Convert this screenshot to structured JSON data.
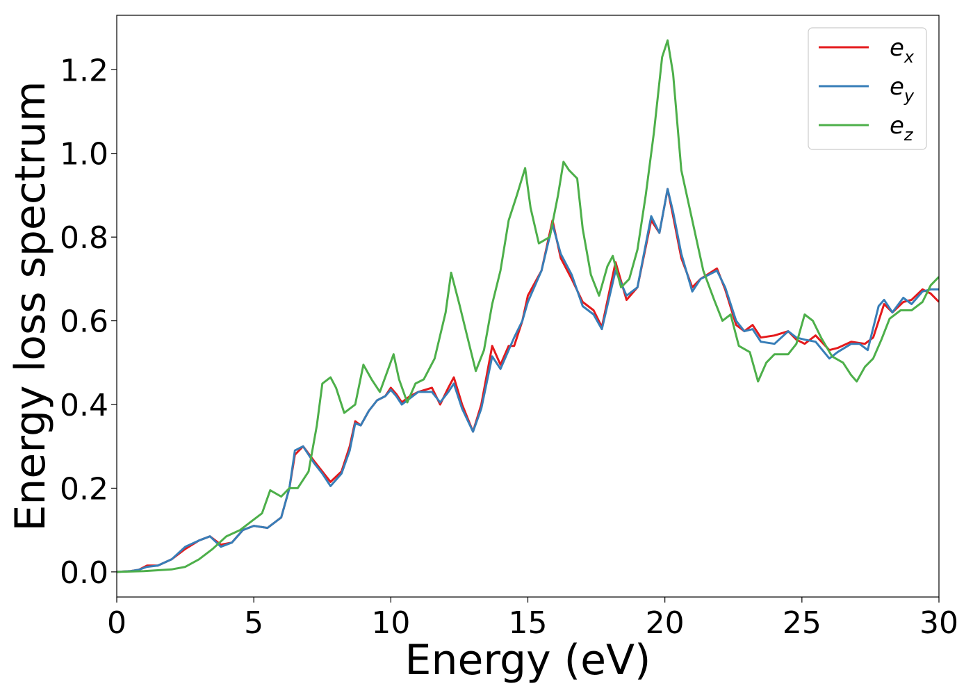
{
  "chart_data": {
    "type": "line",
    "xlabel": "Energy (eV)",
    "ylabel": "Energy loss spectrum",
    "xlim": [
      0,
      30
    ],
    "ylim": [
      -0.06,
      1.33
    ],
    "xticks": [
      0,
      5,
      10,
      15,
      20,
      25,
      30
    ],
    "xtick_labels": [
      "0",
      "5",
      "10",
      "15",
      "20",
      "25",
      "30"
    ],
    "yticks": [
      0.0,
      0.2,
      0.4,
      0.6,
      0.8,
      1.0,
      1.2
    ],
    "ytick_labels": [
      "0.0",
      "0.2",
      "0.4",
      "0.6",
      "0.8",
      "1.0",
      "1.2"
    ],
    "grid": false,
    "legend_position": "top-right",
    "series": [
      {
        "name": "e",
        "subscript": "x",
        "color": "#e41a1c",
        "points": [
          [
            0,
            0
          ],
          [
            0.5,
            0.002
          ],
          [
            0.8,
            0.005
          ],
          [
            1.1,
            0.015
          ],
          [
            1.5,
            0.015
          ],
          [
            2.0,
            0.03
          ],
          [
            2.5,
            0.055
          ],
          [
            3.0,
            0.075
          ],
          [
            3.4,
            0.085
          ],
          [
            3.8,
            0.065
          ],
          [
            4.2,
            0.07
          ],
          [
            4.6,
            0.1
          ],
          [
            5.0,
            0.11
          ],
          [
            5.5,
            0.105
          ],
          [
            6.0,
            0.13
          ],
          [
            6.3,
            0.2
          ],
          [
            6.5,
            0.28
          ],
          [
            6.8,
            0.3
          ],
          [
            7.2,
            0.265
          ],
          [
            7.5,
            0.24
          ],
          [
            7.8,
            0.215
          ],
          [
            8.2,
            0.24
          ],
          [
            8.5,
            0.3
          ],
          [
            8.7,
            0.36
          ],
          [
            8.9,
            0.35
          ],
          [
            9.2,
            0.385
          ],
          [
            9.5,
            0.41
          ],
          [
            9.8,
            0.42
          ],
          [
            10.0,
            0.44
          ],
          [
            10.2,
            0.425
          ],
          [
            10.4,
            0.405
          ],
          [
            10.7,
            0.42
          ],
          [
            11.0,
            0.43
          ],
          [
            11.5,
            0.44
          ],
          [
            11.8,
            0.4
          ],
          [
            12.1,
            0.44
          ],
          [
            12.3,
            0.465
          ],
          [
            12.6,
            0.4
          ],
          [
            13.0,
            0.335
          ],
          [
            13.3,
            0.4
          ],
          [
            13.7,
            0.54
          ],
          [
            14.0,
            0.495
          ],
          [
            14.3,
            0.54
          ],
          [
            14.5,
            0.54
          ],
          [
            14.8,
            0.6
          ],
          [
            15.0,
            0.66
          ],
          [
            15.5,
            0.72
          ],
          [
            15.9,
            0.84
          ],
          [
            16.2,
            0.75
          ],
          [
            16.6,
            0.7
          ],
          [
            17.0,
            0.645
          ],
          [
            17.4,
            0.625
          ],
          [
            17.7,
            0.585
          ],
          [
            18.2,
            0.74
          ],
          [
            18.6,
            0.65
          ],
          [
            19.0,
            0.68
          ],
          [
            19.5,
            0.84
          ],
          [
            19.8,
            0.81
          ],
          [
            20.1,
            0.915
          ],
          [
            20.3,
            0.85
          ],
          [
            20.6,
            0.75
          ],
          [
            21.0,
            0.68
          ],
          [
            21.3,
            0.7
          ],
          [
            21.9,
            0.725
          ],
          [
            22.2,
            0.675
          ],
          [
            22.6,
            0.59
          ],
          [
            22.9,
            0.575
          ],
          [
            23.2,
            0.59
          ],
          [
            23.5,
            0.56
          ],
          [
            24.0,
            0.565
          ],
          [
            24.5,
            0.575
          ],
          [
            24.8,
            0.555
          ],
          [
            25.1,
            0.545
          ],
          [
            25.5,
            0.565
          ],
          [
            26.0,
            0.53
          ],
          [
            26.3,
            0.535
          ],
          [
            26.8,
            0.55
          ],
          [
            27.3,
            0.545
          ],
          [
            27.6,
            0.56
          ],
          [
            28.0,
            0.64
          ],
          [
            28.3,
            0.62
          ],
          [
            28.7,
            0.645
          ],
          [
            29.0,
            0.65
          ],
          [
            29.4,
            0.675
          ],
          [
            29.7,
            0.665
          ],
          [
            30,
            0.645
          ]
        ]
      },
      {
        "name": "e",
        "subscript": "y",
        "color": "#377eb8",
        "points": [
          [
            0,
            0
          ],
          [
            0.5,
            0.002
          ],
          [
            0.8,
            0.005
          ],
          [
            1.1,
            0.012
          ],
          [
            1.5,
            0.015
          ],
          [
            2.0,
            0.03
          ],
          [
            2.5,
            0.06
          ],
          [
            3.0,
            0.075
          ],
          [
            3.4,
            0.085
          ],
          [
            3.8,
            0.06
          ],
          [
            4.2,
            0.07
          ],
          [
            4.6,
            0.1
          ],
          [
            5.0,
            0.11
          ],
          [
            5.5,
            0.105
          ],
          [
            6.0,
            0.13
          ],
          [
            6.3,
            0.2
          ],
          [
            6.5,
            0.29
          ],
          [
            6.8,
            0.3
          ],
          [
            7.2,
            0.26
          ],
          [
            7.5,
            0.235
          ],
          [
            7.8,
            0.205
          ],
          [
            8.2,
            0.235
          ],
          [
            8.5,
            0.29
          ],
          [
            8.7,
            0.355
          ],
          [
            8.9,
            0.35
          ],
          [
            9.2,
            0.385
          ],
          [
            9.5,
            0.41
          ],
          [
            9.8,
            0.42
          ],
          [
            10.0,
            0.435
          ],
          [
            10.2,
            0.42
          ],
          [
            10.4,
            0.4
          ],
          [
            10.7,
            0.415
          ],
          [
            11.0,
            0.43
          ],
          [
            11.5,
            0.43
          ],
          [
            11.8,
            0.405
          ],
          [
            12.1,
            0.43
          ],
          [
            12.3,
            0.45
          ],
          [
            12.6,
            0.39
          ],
          [
            13.0,
            0.335
          ],
          [
            13.3,
            0.39
          ],
          [
            13.7,
            0.515
          ],
          [
            14.0,
            0.485
          ],
          [
            14.3,
            0.53
          ],
          [
            14.5,
            0.56
          ],
          [
            14.8,
            0.6
          ],
          [
            15.0,
            0.645
          ],
          [
            15.5,
            0.72
          ],
          [
            15.9,
            0.83
          ],
          [
            16.2,
            0.76
          ],
          [
            16.6,
            0.71
          ],
          [
            17.0,
            0.635
          ],
          [
            17.4,
            0.615
          ],
          [
            17.7,
            0.58
          ],
          [
            18.2,
            0.72
          ],
          [
            18.6,
            0.66
          ],
          [
            19.0,
            0.68
          ],
          [
            19.5,
            0.85
          ],
          [
            19.8,
            0.81
          ],
          [
            20.1,
            0.915
          ],
          [
            20.3,
            0.86
          ],
          [
            20.6,
            0.76
          ],
          [
            21.0,
            0.67
          ],
          [
            21.3,
            0.7
          ],
          [
            21.9,
            0.72
          ],
          [
            22.2,
            0.68
          ],
          [
            22.6,
            0.6
          ],
          [
            22.9,
            0.575
          ],
          [
            23.2,
            0.58
          ],
          [
            23.5,
            0.55
          ],
          [
            24.0,
            0.545
          ],
          [
            24.5,
            0.575
          ],
          [
            24.8,
            0.56
          ],
          [
            25.1,
            0.555
          ],
          [
            25.5,
            0.55
          ],
          [
            26.0,
            0.51
          ],
          [
            26.3,
            0.525
          ],
          [
            26.8,
            0.545
          ],
          [
            27.1,
            0.545
          ],
          [
            27.4,
            0.53
          ],
          [
            27.8,
            0.635
          ],
          [
            28.0,
            0.65
          ],
          [
            28.3,
            0.62
          ],
          [
            28.7,
            0.655
          ],
          [
            29.0,
            0.64
          ],
          [
            29.4,
            0.67
          ],
          [
            29.7,
            0.675
          ],
          [
            30,
            0.675
          ]
        ]
      },
      {
        "name": "e",
        "subscript": "z",
        "color": "#4daf4a",
        "points": [
          [
            0,
            0
          ],
          [
            1.0,
            0.002
          ],
          [
            2.0,
            0.006
          ],
          [
            2.5,
            0.012
          ],
          [
            3.0,
            0.03
          ],
          [
            3.5,
            0.055
          ],
          [
            4.0,
            0.085
          ],
          [
            4.5,
            0.1
          ],
          [
            4.9,
            0.12
          ],
          [
            5.3,
            0.14
          ],
          [
            5.6,
            0.195
          ],
          [
            6.0,
            0.18
          ],
          [
            6.3,
            0.2
          ],
          [
            6.6,
            0.2
          ],
          [
            7.0,
            0.24
          ],
          [
            7.3,
            0.35
          ],
          [
            7.5,
            0.45
          ],
          [
            7.8,
            0.465
          ],
          [
            8.0,
            0.44
          ],
          [
            8.3,
            0.38
          ],
          [
            8.7,
            0.4
          ],
          [
            9.0,
            0.495
          ],
          [
            9.3,
            0.46
          ],
          [
            9.6,
            0.43
          ],
          [
            10.1,
            0.52
          ],
          [
            10.3,
            0.46
          ],
          [
            10.6,
            0.405
          ],
          [
            10.9,
            0.45
          ],
          [
            11.2,
            0.46
          ],
          [
            11.6,
            0.51
          ],
          [
            12.0,
            0.62
          ],
          [
            12.2,
            0.715
          ],
          [
            12.5,
            0.64
          ],
          [
            12.8,
            0.56
          ],
          [
            13.1,
            0.48
          ],
          [
            13.4,
            0.53
          ],
          [
            13.7,
            0.64
          ],
          [
            14.0,
            0.72
          ],
          [
            14.3,
            0.84
          ],
          [
            14.6,
            0.9
          ],
          [
            14.9,
            0.965
          ],
          [
            15.1,
            0.87
          ],
          [
            15.4,
            0.785
          ],
          [
            15.8,
            0.8
          ],
          [
            16.1,
            0.9
          ],
          [
            16.3,
            0.98
          ],
          [
            16.5,
            0.96
          ],
          [
            16.8,
            0.94
          ],
          [
            17.0,
            0.82
          ],
          [
            17.3,
            0.71
          ],
          [
            17.6,
            0.66
          ],
          [
            17.9,
            0.73
          ],
          [
            18.1,
            0.755
          ],
          [
            18.4,
            0.68
          ],
          [
            18.7,
            0.7
          ],
          [
            19.0,
            0.77
          ],
          [
            19.3,
            0.9
          ],
          [
            19.6,
            1.05
          ],
          [
            19.9,
            1.23
          ],
          [
            20.1,
            1.27
          ],
          [
            20.3,
            1.19
          ],
          [
            20.6,
            0.96
          ],
          [
            21.0,
            0.84
          ],
          [
            21.4,
            0.72
          ],
          [
            21.8,
            0.65
          ],
          [
            22.1,
            0.6
          ],
          [
            22.4,
            0.615
          ],
          [
            22.7,
            0.54
          ],
          [
            23.1,
            0.525
          ],
          [
            23.4,
            0.455
          ],
          [
            23.7,
            0.5
          ],
          [
            24.0,
            0.52
          ],
          [
            24.5,
            0.52
          ],
          [
            24.8,
            0.545
          ],
          [
            25.1,
            0.615
          ],
          [
            25.4,
            0.6
          ],
          [
            25.7,
            0.56
          ],
          [
            26.1,
            0.515
          ],
          [
            26.5,
            0.5
          ],
          [
            26.8,
            0.47
          ],
          [
            27.0,
            0.455
          ],
          [
            27.3,
            0.49
          ],
          [
            27.6,
            0.51
          ],
          [
            27.9,
            0.555
          ],
          [
            28.2,
            0.605
          ],
          [
            28.6,
            0.625
          ],
          [
            29.0,
            0.625
          ],
          [
            29.4,
            0.645
          ],
          [
            29.7,
            0.685
          ],
          [
            30,
            0.705
          ]
        ]
      }
    ]
  }
}
